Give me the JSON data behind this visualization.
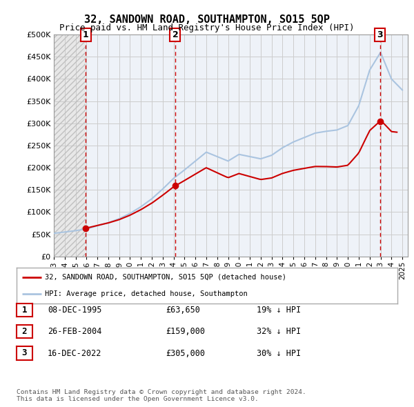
{
  "title": "32, SANDOWN ROAD, SOUTHAMPTON, SO15 5QP",
  "subtitle": "Price paid vs. HM Land Registry's House Price Index (HPI)",
  "ylim": [
    0,
    500000
  ],
  "yticks": [
    0,
    50000,
    100000,
    150000,
    200000,
    250000,
    300000,
    350000,
    400000,
    450000,
    500000
  ],
  "ytick_labels": [
    "£0",
    "£50K",
    "£100K",
    "£150K",
    "£200K",
    "£250K",
    "£300K",
    "£350K",
    "£400K",
    "£450K",
    "£500K"
  ],
  "xmin": 1993.0,
  "xmax": 2025.5,
  "sale_dates": [
    1995.93,
    2004.15,
    2022.96
  ],
  "sale_prices": [
    63650,
    159000,
    305000
  ],
  "sale_labels": [
    "1",
    "2",
    "3"
  ],
  "legend_entries": [
    "32, SANDOWN ROAD, SOUTHAMPTON, SO15 5QP (detached house)",
    "HPI: Average price, detached house, Southampton"
  ],
  "table_rows": [
    [
      "1",
      "08-DEC-1995",
      "£63,650",
      "19% ↓ HPI"
    ],
    [
      "2",
      "26-FEB-2004",
      "£159,000",
      "32% ↓ HPI"
    ],
    [
      "3",
      "16-DEC-2022",
      "£305,000",
      "30% ↓ HPI"
    ]
  ],
  "footnote": "Contains HM Land Registry data © Crown copyright and database right 2024.\nThis data is licensed under the Open Government Licence v3.0.",
  "hpi_color": "#aac4e0",
  "sale_color": "#cc0000",
  "vline_color": "#cc0000",
  "grid_color": "#cccccc",
  "bg_left_color": "#e8e8e8",
  "bg_right_color": "#eef2f8"
}
